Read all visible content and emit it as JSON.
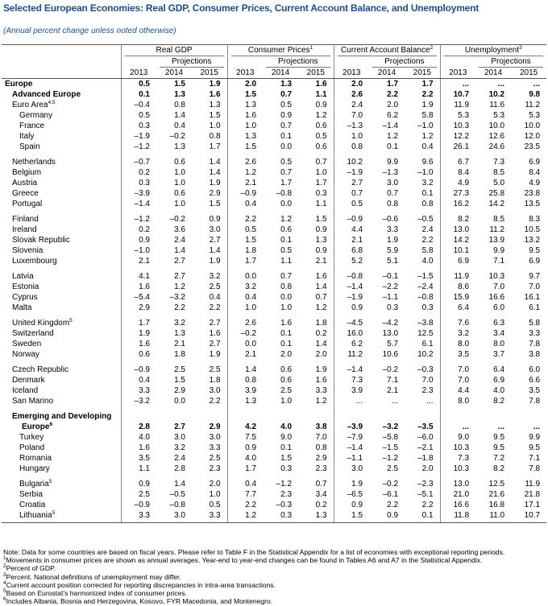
{
  "header": {
    "title": "Selected European Economies: Real GDP, Consumer Prices, Current Account Balance, and Unemployment",
    "subtitle": "(Annual percent change unless noted otherwise)"
  },
  "table": {
    "columns": [
      {
        "title": "Real GDP"
      },
      {
        "title": "Consumer Prices",
        "note": "1"
      },
      {
        "title": "Current Account Balance",
        "note": "2"
      },
      {
        "title": "Unemployment",
        "note": "3"
      }
    ],
    "projections": "Projections",
    "years": [
      "2013",
      "2014",
      "2015"
    ],
    "groups": [
      [
        {
          "label": "Europe",
          "bold": true,
          "indent": 0,
          "values": [
            "0.5",
            "1.5",
            "1.9",
            "2.0",
            "1.3",
            "1.6",
            "2.0",
            "1.7",
            "1.7",
            "...",
            "...",
            "..."
          ]
        },
        {
          "label": "Advanced Europe",
          "bold": true,
          "indent": 1,
          "values": [
            "0.1",
            "1.3",
            "1.6",
            "1.5",
            "0.7",
            "1.1",
            "2.6",
            "2.2",
            "2.2",
            "10.7",
            "10.2",
            "9.8"
          ]
        },
        {
          "label": "Euro Area",
          "note": "4,5",
          "indent": 1,
          "values": [
            "–0.4",
            "0.8",
            "1.3",
            "1.3",
            "0.5",
            "0.9",
            "2.4",
            "2.0",
            "1.9",
            "11.9",
            "11.6",
            "11.2"
          ]
        },
        {
          "label": "Germany",
          "indent": 2,
          "values": [
            "0.5",
            "1.4",
            "1.5",
            "1.6",
            "0.9",
            "1.2",
            "7.0",
            "6.2",
            "5.8",
            "5.3",
            "5.3",
            "5.3"
          ]
        },
        {
          "label": "France",
          "indent": 2,
          "values": [
            "0.3",
            "0.4",
            "1.0",
            "1.0",
            "0.7",
            "0.6",
            "–1.3",
            "–1.4",
            "–1.0",
            "10.3",
            "10.0",
            "10.0"
          ]
        },
        {
          "label": "Italy",
          "indent": 2,
          "values": [
            "–1.9",
            "–0.2",
            "0.8",
            "1.3",
            "0.1",
            "0.5",
            "1.0",
            "1.2",
            "1.2",
            "12.2",
            "12.6",
            "12.0"
          ]
        },
        {
          "label": "Spain",
          "indent": 2,
          "values": [
            "–1.2",
            "1.3",
            "1.7",
            "1.5",
            "0.0",
            "0.6",
            "0.8",
            "0.1",
            "0.4",
            "26.1",
            "24.6",
            "23.5"
          ]
        }
      ],
      [
        {
          "label": "Netherlands",
          "indent": 1,
          "values": [
            "–0.7",
            "0.6",
            "1.4",
            "2.6",
            "0.5",
            "0.7",
            "10.2",
            "9.9",
            "9.6",
            "6.7",
            "7.3",
            "6.9"
          ]
        },
        {
          "label": "Belgium",
          "indent": 1,
          "values": [
            "0.2",
            "1.0",
            "1.4",
            "1.2",
            "0.7",
            "1.0",
            "–1.9",
            "–1.3",
            "–1.0",
            "8.4",
            "8.5",
            "8.4"
          ]
        },
        {
          "label": "Austria",
          "indent": 1,
          "values": [
            "0.3",
            "1.0",
            "1.9",
            "2.1",
            "1.7",
            "1.7",
            "2.7",
            "3.0",
            "3.2",
            "4.9",
            "5.0",
            "4.9"
          ]
        },
        {
          "label": "Greece",
          "indent": 1,
          "values": [
            "–3.9",
            "0.6",
            "2.9",
            "–0.9",
            "–0.8",
            "0.3",
            "0.7",
            "0.7",
            "0.1",
            "27.3",
            "25.8",
            "23.8"
          ]
        },
        {
          "label": "Portugal",
          "indent": 1,
          "values": [
            "–1.4",
            "1.0",
            "1.5",
            "0.4",
            "0.0",
            "1.1",
            "0.5",
            "0.8",
            "0.8",
            "16.2",
            "14.2",
            "13.5"
          ]
        }
      ],
      [
        {
          "label": "Finland",
          "indent": 1,
          "values": [
            "–1.2",
            "–0.2",
            "0.9",
            "2.2",
            "1.2",
            "1.5",
            "–0.9",
            "–0.6",
            "–0.5",
            "8.2",
            "8.5",
            "8.3"
          ]
        },
        {
          "label": "Ireland",
          "indent": 1,
          "values": [
            "0.2",
            "3.6",
            "3.0",
            "0.5",
            "0.6",
            "0.9",
            "4.4",
            "3.3",
            "2.4",
            "13.0",
            "11.2",
            "10.5"
          ]
        },
        {
          "label": "Slovak Republic",
          "indent": 1,
          "values": [
            "0.9",
            "2.4",
            "2.7",
            "1.5",
            "0.1",
            "1.3",
            "2.1",
            "1.9",
            "2.2",
            "14.2",
            "13.9",
            "13.2"
          ]
        },
        {
          "label": "Slovenia",
          "indent": 1,
          "values": [
            "–1.0",
            "1.4",
            "1.4",
            "1.8",
            "0.5",
            "0.9",
            "6.8",
            "5.9",
            "5.8",
            "10.1",
            "9.9",
            "9.5"
          ]
        },
        {
          "label": "Luxembourg",
          "indent": 1,
          "values": [
            "2.1",
            "2.7",
            "1.9",
            "1.7",
            "1.1",
            "2.1",
            "5.2",
            "5.1",
            "4.0",
            "6.9",
            "7.1",
            "6.9"
          ]
        }
      ],
      [
        {
          "label": "Latvia",
          "indent": 1,
          "values": [
            "4.1",
            "2.7",
            "3.2",
            "0.0",
            "0.7",
            "1.6",
            "–0.8",
            "–0.1",
            "–1.5",
            "11.9",
            "10.3",
            "9.7"
          ]
        },
        {
          "label": "Estonia",
          "indent": 1,
          "values": [
            "1.6",
            "1.2",
            "2.5",
            "3.2",
            "0.8",
            "1.4",
            "–1.4",
            "–2.2",
            "–2.4",
            "8.6",
            "7.0",
            "7.0"
          ]
        },
        {
          "label": "Cyprus",
          "indent": 1,
          "values": [
            "–5.4",
            "–3.2",
            "0.4",
            "0.4",
            "0.0",
            "0.7",
            "–1.9",
            "–1.1",
            "–0.8",
            "15.9",
            "16.6",
            "16.1"
          ]
        },
        {
          "label": "Malta",
          "indent": 1,
          "values": [
            "2.9",
            "2.2",
            "2.2",
            "1.0",
            "1.0",
            "1.2",
            "0.9",
            "0.3",
            "0.3",
            "6.4",
            "6.0",
            "6.1"
          ]
        }
      ],
      [
        {
          "label": "United Kingdom",
          "note": "5",
          "indent": 1,
          "values": [
            "1.7",
            "3.2",
            "2.7",
            "2.6",
            "1.6",
            "1.8",
            "–4.5",
            "–4.2",
            "–3.8",
            "7.6",
            "6.3",
            "5.8"
          ]
        },
        {
          "label": "Switzerland",
          "indent": 1,
          "values": [
            "1.9",
            "1.3",
            "1.6",
            "–0.2",
            "0.1",
            "0.2",
            "16.0",
            "13.0",
            "12.5",
            "3.2",
            "3.4",
            "3.3"
          ]
        },
        {
          "label": "Sweden",
          "indent": 1,
          "values": [
            "1.6",
            "2.1",
            "2.7",
            "0.0",
            "0.1",
            "1.4",
            "6.2",
            "5.7",
            "6.1",
            "8.0",
            "8.0",
            "7.8"
          ]
        },
        {
          "label": "Norway",
          "indent": 1,
          "values": [
            "0.6",
            "1.8",
            "1.9",
            "2.1",
            "2.0",
            "2.0",
            "11.2",
            "10.6",
            "10.2",
            "3.5",
            "3.7",
            "3.8"
          ]
        }
      ],
      [
        {
          "label": "Czech Republic",
          "indent": 1,
          "values": [
            "–0.9",
            "2.5",
            "2.5",
            "1.4",
            "0.6",
            "1.9",
            "–1.4",
            "–0.2",
            "–0.3",
            "7.0",
            "6.4",
            "6.0"
          ]
        },
        {
          "label": "Denmark",
          "indent": 1,
          "values": [
            "0.4",
            "1.5",
            "1.8",
            "0.8",
            "0.6",
            "1.6",
            "7.3",
            "7.1",
            "7.0",
            "7.0",
            "6.9",
            "6.6"
          ]
        },
        {
          "label": "Iceland",
          "indent": 1,
          "values": [
            "3.3",
            "2.9",
            "3.0",
            "3.9",
            "2.5",
            "3.3",
            "3.9",
            "2.1",
            "2.3",
            "4.4",
            "4.0",
            "3.5"
          ]
        },
        {
          "label": "San Marino",
          "indent": 1,
          "values": [
            "–3.2",
            "0.0",
            "2.2",
            "1.3",
            "1.0",
            "1.2",
            "...",
            "...",
            "...",
            "8.0",
            "8.2",
            "7.8"
          ]
        }
      ],
      [
        {
          "label_lines": [
            "Emerging and Developing",
            "Europe"
          ],
          "note": "6",
          "bold": true,
          "indent": 1,
          "values": [
            "2.8",
            "2.7",
            "2.9",
            "4.2",
            "4.0",
            "3.8",
            "–3.9",
            "–3.2",
            "–3.5",
            "...",
            "...",
            "..."
          ]
        },
        {
          "label": "Turkey",
          "indent": 2,
          "values": [
            "4.0",
            "3.0",
            "3.0",
            "7.5",
            "9.0",
            "7.0",
            "–7.9",
            "–5.8",
            "–6.0",
            "9.0",
            "9.5",
            "9.9"
          ]
        },
        {
          "label": "Poland",
          "indent": 2,
          "values": [
            "1.6",
            "3.2",
            "3.3",
            "0.9",
            "0.1",
            "0.8",
            "–1.4",
            "–1.5",
            "–2.1",
            "10.3",
            "9.5",
            "9.5"
          ]
        },
        {
          "label": "Romania",
          "indent": 2,
          "values": [
            "3.5",
            "2.4",
            "2.5",
            "4.0",
            "1.5",
            "2.9",
            "–1.1",
            "–1.2",
            "–1.8",
            "7.3",
            "7.2",
            "7.1"
          ]
        },
        {
          "label": "Hungary",
          "indent": 2,
          "values": [
            "1.1",
            "2.8",
            "2.3",
            "1.7",
            "0.3",
            "2.3",
            "3.0",
            "2.5",
            "2.0",
            "10.3",
            "8.2",
            "7.8"
          ]
        }
      ],
      [
        {
          "label": "Bulgaria",
          "note": "5",
          "indent": 2,
          "values": [
            "0.9",
            "1.4",
            "2.0",
            "0.4",
            "–1.2",
            "0.7",
            "1.9",
            "–0.2",
            "–2.3",
            "13.0",
            "12.5",
            "11.9"
          ]
        },
        {
          "label": "Serbia",
          "indent": 2,
          "values": [
            "2.5",
            "–0.5",
            "1.0",
            "7.7",
            "2.3",
            "3.4",
            "–6.5",
            "–6.1",
            "–5.1",
            "21.0",
            "21.6",
            "21.8"
          ]
        },
        {
          "label": "Croatia",
          "indent": 2,
          "values": [
            "–0.9",
            "–0.8",
            "0.5",
            "2.2",
            "–0.3",
            "0.2",
            "0.9",
            "2.2",
            "2.2",
            "16.6",
            "16.8",
            "17.1"
          ]
        },
        {
          "label": "Lithuania",
          "note": "5",
          "indent": 2,
          "values": [
            "3.3",
            "3.0",
            "3.3",
            "1.2",
            "0.3",
            "1.3",
            "1.5",
            "0.9",
            "0.1",
            "11.8",
            "11.0",
            "10.7"
          ]
        }
      ]
    ]
  },
  "footnotes": [
    {
      "text": "Note: Data for some countries are based on fiscal years. Please refer to Table F in the Statistical Appendix for a list of economies with exceptional reporting periods."
    },
    {
      "mark": "1",
      "text": "Movements in consumer prices are shown as annual averages. Year-end to year-end changes can be found in Tables A6 and A7 in the Statistical Appendix."
    },
    {
      "mark": "2",
      "text": "Percent of GDP."
    },
    {
      "mark": "3",
      "text": "Percent. National definitions of unemployment may differ."
    },
    {
      "mark": "4",
      "text": "Current account position corrected for reporting discrepancies in intra-area transactions."
    },
    {
      "mark": "5",
      "text": "Based on Eurostat’s harmonized index of consumer prices."
    },
    {
      "mark": "6",
      "text": "Includes Albania, Bosnia and Herzegovina, Kosovo, FYR Macedonia, and Montenegro."
    }
  ]
}
